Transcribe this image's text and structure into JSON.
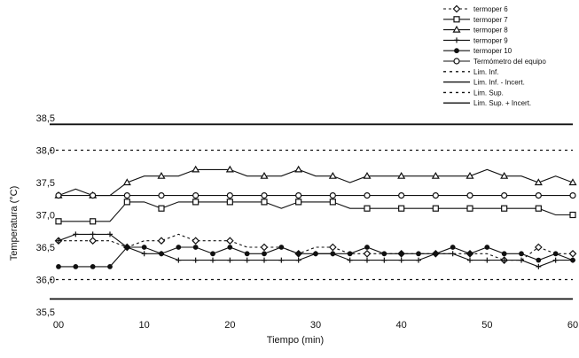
{
  "chart_data": {
    "type": "line",
    "xlabel": "Tiempo (min)",
    "ylabel": "Temperatura (°C)",
    "xlim": [
      0,
      60
    ],
    "ylim": [
      35.5,
      38.5
    ],
    "x_ticks": [
      "00",
      "10",
      "20",
      "30",
      "40",
      "50",
      "60"
    ],
    "y_ticks": [
      "35,5",
      "36,0",
      "36,5",
      "37,0",
      "37,5",
      "38,0",
      "38,5"
    ],
    "grid": false,
    "legend_position": "top-right",
    "x": [
      0,
      2,
      4,
      6,
      8,
      10,
      12,
      14,
      16,
      18,
      20,
      22,
      24,
      26,
      28,
      30,
      32,
      34,
      36,
      38,
      40,
      42,
      44,
      46,
      48,
      50,
      52,
      54,
      56,
      58,
      60
    ],
    "series": [
      {
        "name": "termoper 6",
        "marker": "diamond",
        "dash": "3,3",
        "values": [
          36.6,
          36.6,
          36.6,
          36.6,
          36.5,
          36.6,
          36.6,
          36.7,
          36.6,
          36.6,
          36.6,
          36.5,
          36.5,
          36.5,
          36.4,
          36.5,
          36.5,
          36.4,
          36.4,
          36.4,
          36.4,
          36.4,
          36.4,
          36.4,
          36.4,
          36.4,
          36.3,
          36.3,
          36.5,
          36.4,
          36.4
        ]
      },
      {
        "name": "termoper 7",
        "marker": "square",
        "dash": "",
        "values": [
          36.9,
          36.9,
          36.9,
          36.9,
          37.2,
          37.2,
          37.1,
          37.2,
          37.2,
          37.2,
          37.2,
          37.2,
          37.2,
          37.1,
          37.2,
          37.2,
          37.2,
          37.1,
          37.1,
          37.1,
          37.1,
          37.1,
          37.1,
          37.1,
          37.1,
          37.1,
          37.1,
          37.1,
          37.1,
          37.0,
          37.0
        ]
      },
      {
        "name": "termoper 8",
        "marker": "triangle",
        "dash": "",
        "values": [
          37.3,
          37.4,
          37.3,
          37.3,
          37.5,
          37.6,
          37.6,
          37.6,
          37.7,
          37.7,
          37.7,
          37.6,
          37.6,
          37.6,
          37.7,
          37.6,
          37.6,
          37.5,
          37.6,
          37.6,
          37.6,
          37.6,
          37.6,
          37.6,
          37.6,
          37.7,
          37.6,
          37.6,
          37.5,
          37.6,
          37.5
        ]
      },
      {
        "name": "termoper 9",
        "marker": "plus",
        "dash": "",
        "values": [
          36.6,
          36.7,
          36.7,
          36.7,
          36.5,
          36.4,
          36.4,
          36.3,
          36.3,
          36.3,
          36.3,
          36.3,
          36.3,
          36.3,
          36.3,
          36.4,
          36.4,
          36.3,
          36.3,
          36.3,
          36.3,
          36.3,
          36.4,
          36.4,
          36.3,
          36.3,
          36.3,
          36.3,
          36.2,
          36.3,
          36.3
        ]
      },
      {
        "name": "termoper 10",
        "marker": "dot",
        "dash": "",
        "values": [
          36.2,
          36.2,
          36.2,
          36.2,
          36.5,
          36.5,
          36.4,
          36.5,
          36.5,
          36.4,
          36.5,
          36.4,
          36.4,
          36.5,
          36.4,
          36.4,
          36.4,
          36.4,
          36.5,
          36.4,
          36.4,
          36.4,
          36.4,
          36.5,
          36.4,
          36.5,
          36.4,
          36.4,
          36.3,
          36.4,
          36.3
        ]
      },
      {
        "name": "Termómetro del equipo",
        "marker": "circle",
        "dash": "",
        "values": [
          37.3,
          37.3,
          37.3,
          37.3,
          37.3,
          37.3,
          37.3,
          37.3,
          37.3,
          37.3,
          37.3,
          37.3,
          37.3,
          37.3,
          37.3,
          37.3,
          37.3,
          37.3,
          37.3,
          37.3,
          37.3,
          37.3,
          37.3,
          37.3,
          37.3,
          37.3,
          37.3,
          37.3,
          37.3,
          37.3,
          37.3
        ]
      }
    ],
    "reference_lines": [
      {
        "name": "Lim. Inf.",
        "value": 36.0,
        "dash": "3,4"
      },
      {
        "name": "Lim. Inf. - Incert.",
        "value": 35.7,
        "dash": ""
      },
      {
        "name": "Lim. Sup.",
        "value": 38.0,
        "dash": "3,4"
      },
      {
        "name": "Lim. Sup. + Incert.",
        "value": 38.4,
        "dash": ""
      }
    ]
  }
}
